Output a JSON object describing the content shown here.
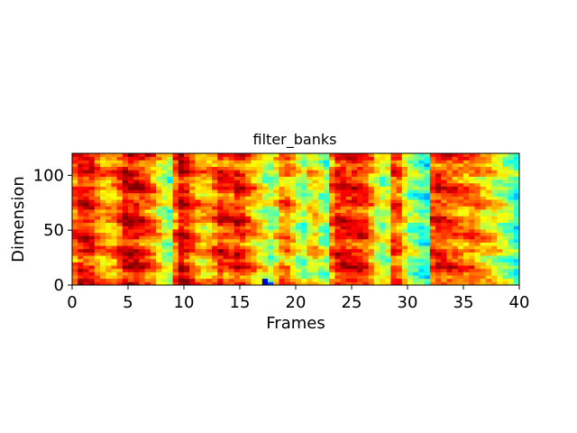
{
  "chart_data": {
    "type": "heatmap",
    "title": "filter_banks",
    "xlabel": "Frames",
    "ylabel": "Dimension",
    "xlim": [
      0,
      40
    ],
    "ylim": [
      0,
      120
    ],
    "xticks": [
      "0",
      "5",
      "10",
      "15",
      "20",
      "25",
      "30",
      "35",
      "40"
    ],
    "yticks": [
      "0",
      "50",
      "100"
    ],
    "colormap": "jet",
    "grid": false,
    "legend": "none",
    "frames": 80,
    "dimensions": 40,
    "frame_profile": [
      0.78,
      0.86,
      0.86,
      0.84,
      0.76,
      0.72,
      0.7,
      0.74,
      0.8,
      0.9,
      0.9,
      0.88,
      0.84,
      0.8,
      0.74,
      0.64,
      0.56,
      0.52,
      0.76,
      0.9,
      0.86,
      0.78,
      0.72,
      0.68,
      0.7,
      0.76,
      0.84,
      0.82,
      0.8,
      0.86,
      0.84,
      0.76,
      0.7,
      0.64,
      0.58,
      0.52,
      0.6,
      0.72,
      0.74,
      0.66,
      0.58,
      0.5,
      0.62,
      0.66,
      0.56,
      0.5,
      0.76,
      0.86,
      0.88,
      0.86,
      0.86,
      0.84,
      0.8,
      0.72,
      0.6,
      0.54,
      0.58,
      0.8,
      0.78,
      0.64,
      0.54,
      0.5,
      0.44,
      0.42,
      0.8,
      0.84,
      0.82,
      0.8,
      0.78,
      0.76,
      0.74,
      0.76,
      0.72,
      0.68,
      0.66,
      0.62,
      0.58,
      0.54,
      0.5,
      0.44
    ]
  }
}
